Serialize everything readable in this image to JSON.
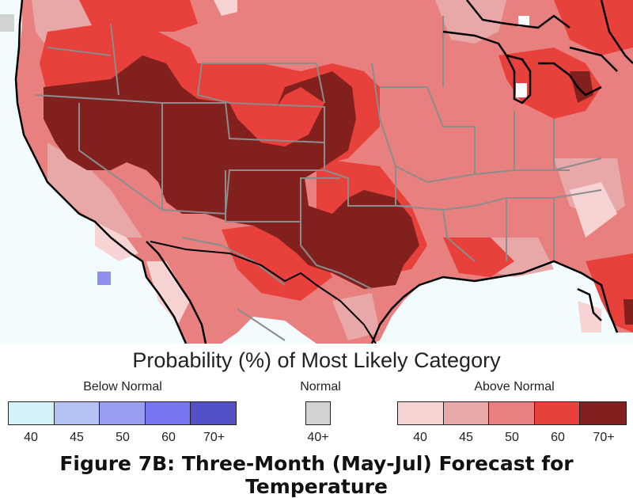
{
  "map": {
    "colors": {
      "ocean": "#f2fbfd",
      "land_base": "#e8807f",
      "above_40": "#f8d3d3",
      "above_45": "#e9a8a8",
      "above_50": "#e8807f",
      "above_60": "#e8403a",
      "above_70": "#82201e",
      "below_60": "#8f8ff0",
      "state_line": "#8c8c8c",
      "coast_line": "#000000"
    }
  },
  "legend": {
    "title": "Probability (%) of Most Likely Category",
    "below": {
      "label": "Below Normal",
      "ticks": [
        "40",
        "45",
        "50",
        "60",
        "70+"
      ],
      "colors": [
        "#d4f3f8",
        "#b4c3f4",
        "#9b9df0",
        "#7775f0",
        "#5350c8"
      ]
    },
    "normal": {
      "label": "Normal",
      "ticks": [
        "40+"
      ],
      "colors": [
        "#d2d2d2"
      ]
    },
    "above": {
      "label": "Above Normal",
      "ticks": [
        "40",
        "45",
        "50",
        "60",
        "70+"
      ],
      "colors": [
        "#f8d3d3",
        "#e9a8a8",
        "#e8807f",
        "#e8403a",
        "#82201e"
      ]
    }
  },
  "caption": "Figure 7B: Three-Month (May-Jul) Forecast for Temperature"
}
